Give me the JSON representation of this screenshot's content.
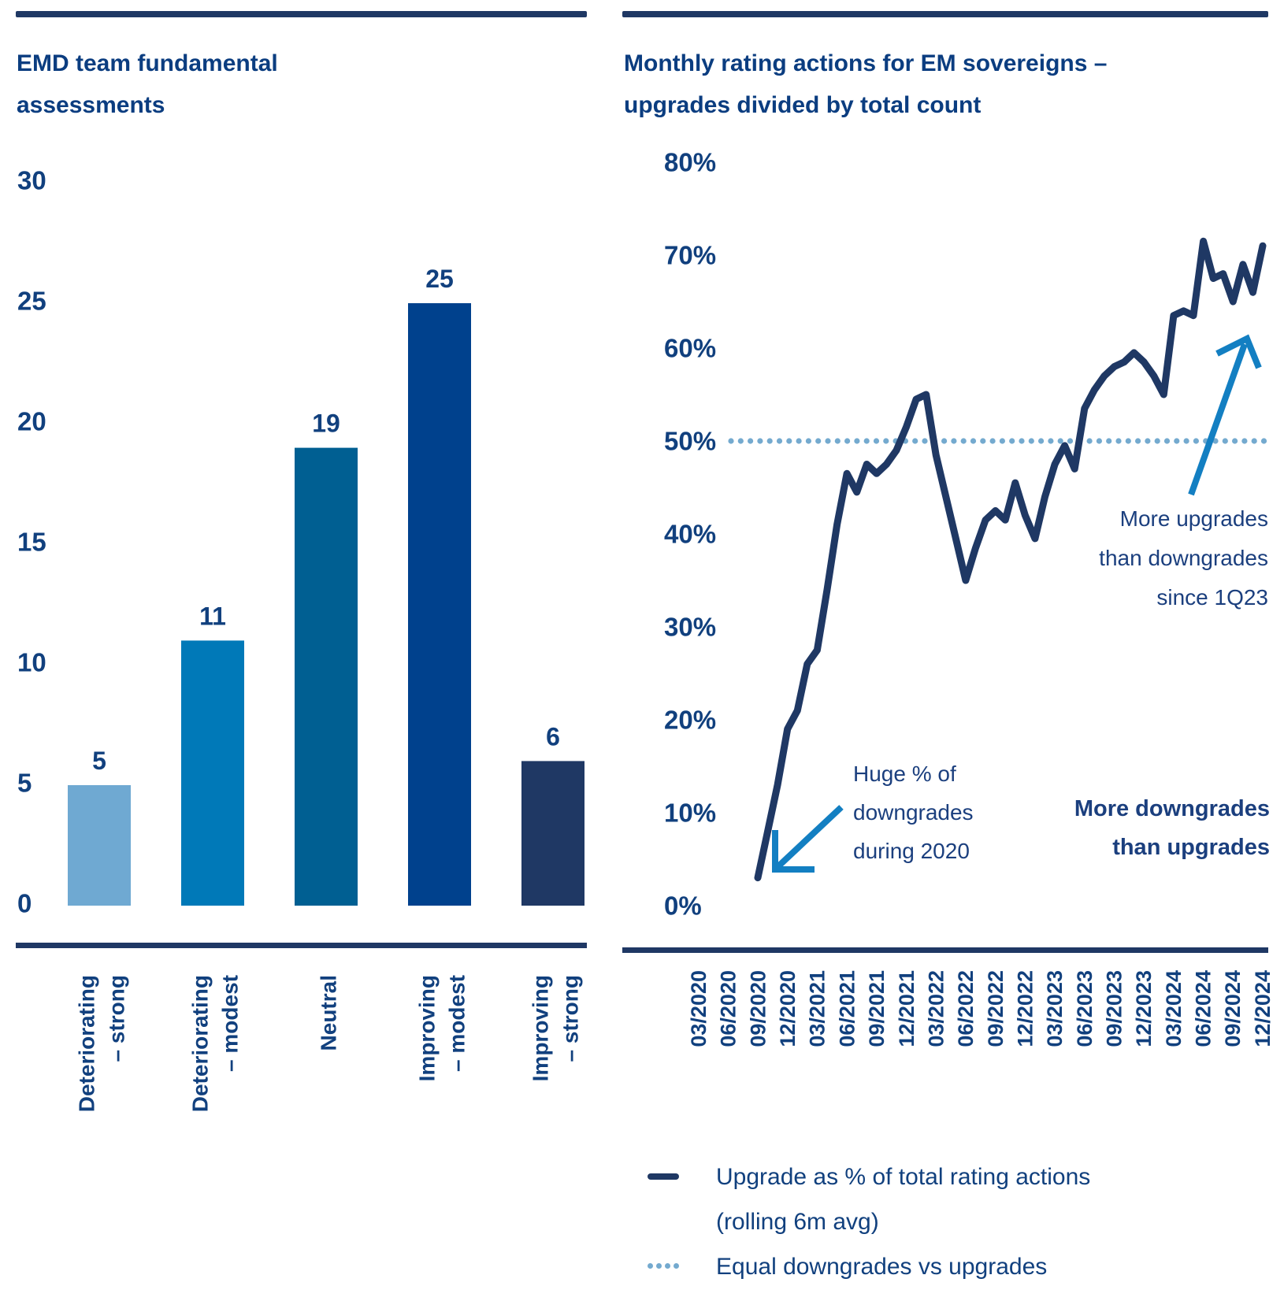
{
  "colors": {
    "navy": "#1F3864",
    "rule": "#1F3864",
    "title": "#0B3D80",
    "tick": "#11407E",
    "annotation": "#1B3F7E",
    "ref_dots": "#74AACF",
    "arrow": "#137FC2"
  },
  "left_panel": {
    "title": "EMD team fundamental assessments",
    "title_lines": [
      "EMD team fundamental",
      "assessments"
    ]
  },
  "right_panel": {
    "title": "Monthly rating actions for EM sovereigns – upgrades divided by total count",
    "title_lines": [
      "Monthly rating actions for EM sovereigns –",
      "upgrades divided by total count"
    ],
    "legend": [
      {
        "swatch": "line",
        "label": "Upgrade as % of total rating actions",
        "label2": "(rolling 6m avg)"
      },
      {
        "swatch": "dots",
        "label": "Equal downgrades vs upgrades"
      }
    ]
  },
  "chart_data": [
    {
      "type": "bar",
      "title": "EMD team fundamental assessments",
      "categories": [
        "Deteriorating – strong",
        "Deteriorating – modest",
        "Neutral",
        "Improving – modest",
        "Improving – strong"
      ],
      "category_lines": [
        [
          "Deteriorating",
          "– strong"
        ],
        [
          "Deteriorating",
          "– modest"
        ],
        [
          "Neutral"
        ],
        [
          "Improving",
          "– modest"
        ],
        [
          "Improving",
          "– strong"
        ]
      ],
      "values": [
        5,
        11,
        19,
        25,
        6
      ],
      "bar_colors": [
        "#6FA9D2",
        "#0079B8",
        "#005F92",
        "#00418D",
        "#1F3864"
      ],
      "ylim": [
        0,
        30
      ],
      "yticks": [
        0,
        5,
        10,
        15,
        20,
        25,
        30
      ],
      "grid": false,
      "value_labels": true
    },
    {
      "type": "line",
      "title": "Monthly rating actions for EM sovereigns – upgrades divided by total count",
      "x": [
        "09/2020",
        "10/2020",
        "11/2020",
        "12/2020",
        "01/2021",
        "02/2021",
        "03/2021",
        "04/2021",
        "05/2021",
        "06/2021",
        "07/2021",
        "08/2021",
        "09/2021",
        "10/2021",
        "11/2021",
        "12/2021",
        "01/2022",
        "02/2022",
        "03/2022",
        "04/2022",
        "05/2022",
        "06/2022",
        "07/2022",
        "08/2022",
        "09/2022",
        "10/2022",
        "11/2022",
        "12/2022",
        "01/2023",
        "02/2023",
        "03/2023",
        "04/2023",
        "05/2023",
        "06/2023",
        "07/2023",
        "08/2023",
        "09/2023",
        "10/2023",
        "11/2023",
        "12/2023",
        "01/2024",
        "02/2024",
        "03/2024",
        "04/2024",
        "05/2024",
        "06/2024",
        "07/2024",
        "08/2024",
        "09/2024",
        "10/2024",
        "11/2024",
        "12/2024"
      ],
      "series": [
        {
          "name": "Upgrade as % of total rating actions (rolling 6m avg)",
          "color": "#1F3864",
          "values": [
            3,
            8,
            13,
            19,
            21,
            26,
            27.5,
            34,
            41,
            46.5,
            44.5,
            47.5,
            46.5,
            47.5,
            49,
            51.5,
            54.5,
            55,
            48.5,
            44,
            39.5,
            35,
            38.5,
            41.5,
            42.5,
            41.5,
            45.5,
            42,
            39.5,
            44,
            47.5,
            49.5,
            47,
            53.5,
            55.5,
            57,
            58,
            58.5,
            59.5,
            58.5,
            57,
            55,
            63.5,
            64,
            63.5,
            71.5,
            67.5,
            68,
            65,
            69,
            66,
            71
          ]
        }
      ],
      "reference_line": {
        "label": "Equal downgrades vs upgrades",
        "value": 50,
        "style": "dotted",
        "color": "#74AACF"
      },
      "ylim": [
        0,
        80
      ],
      "ytick_labels": [
        "0%",
        "10%",
        "20%",
        "30%",
        "40%",
        "50%",
        "60%",
        "70%",
        "80%"
      ],
      "xtick_labels": [
        "03/2020",
        "06/2020",
        "09/2020",
        "12/2020",
        "03/2021",
        "06/2021",
        "09/2021",
        "12/2021",
        "03/2022",
        "06/2022",
        "09/2022",
        "12/2022",
        "03/2023",
        "06/2023",
        "09/2023",
        "12/2023",
        "03/2024",
        "06/2024",
        "09/2024",
        "12/2024"
      ],
      "grid": false,
      "legend_position": "bottom",
      "annotations": {
        "huge_downgrades": {
          "lines": [
            "Huge % of",
            "downgrades",
            "during 2020"
          ],
          "arrow": "down-left"
        },
        "more_downgrades": {
          "lines": [
            "More downgrades",
            "than upgrades"
          ],
          "bold": true
        },
        "more_upgrades": {
          "lines": [
            "More upgrades",
            "than downgrades",
            "since 1Q23"
          ],
          "arrow": "up-right"
        }
      }
    }
  ]
}
